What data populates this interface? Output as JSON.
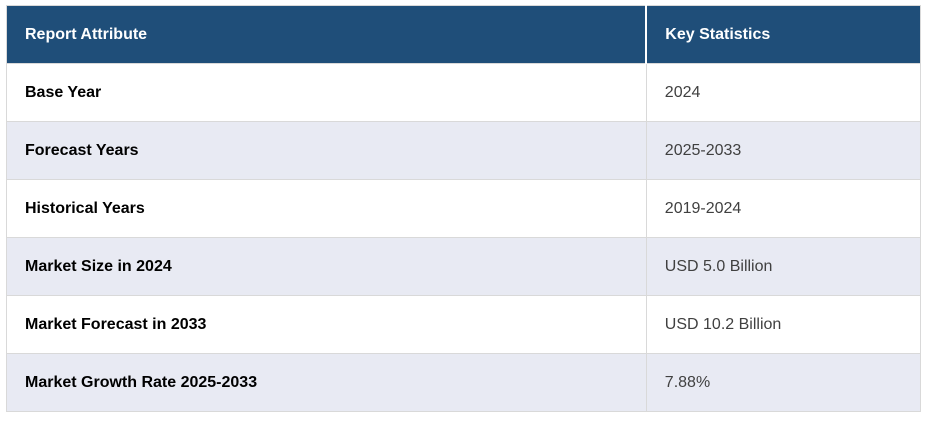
{
  "theme": {
    "header_bg": "#1f4e79",
    "header_text": "#ffffff",
    "stripe_bg": "#e8eaf3",
    "row_bg": "#ffffff",
    "border": "#d9d9d9",
    "label_text": "#000000",
    "value_text": "#404040"
  },
  "chart_data": {
    "type": "table",
    "title": "",
    "columns": [
      "Report Attribute",
      "Key Statistics"
    ],
    "rows": [
      {
        "attribute": "Base Year",
        "value": "2024"
      },
      {
        "attribute": "Forecast Years",
        "value": "2025-2033"
      },
      {
        "attribute": "Historical Years",
        "value": "2019-2024"
      },
      {
        "attribute": "Market Size in 2024",
        "value": "USD 5.0 Billion"
      },
      {
        "attribute": "Market Forecast in 2033",
        "value": "USD 10.2 Billion"
      },
      {
        "attribute": "Market Growth Rate 2025-2033",
        "value": "7.88%"
      }
    ]
  }
}
